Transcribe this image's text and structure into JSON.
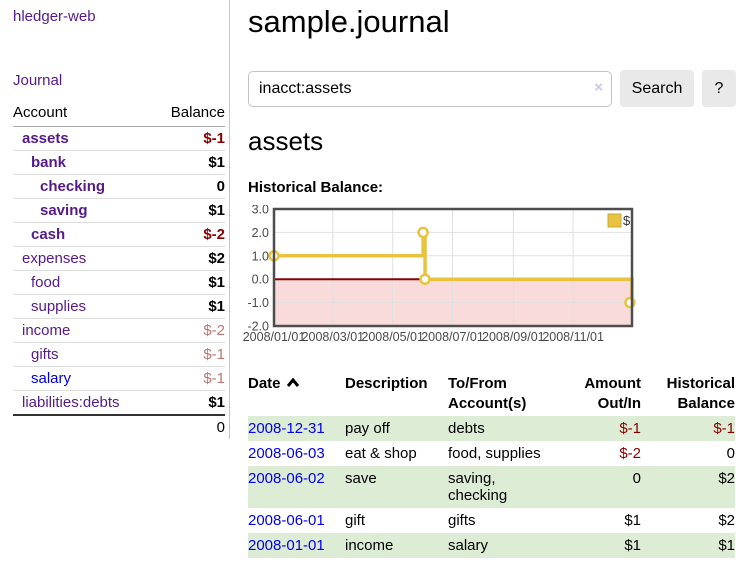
{
  "app": {
    "title": "hledger-web"
  },
  "sidebar": {
    "journal_label": "Journal",
    "accounts": {
      "header_account": "Account",
      "header_balance": "Balance",
      "rows": [
        {
          "name": "assets",
          "balance": "$-1",
          "depth": 1,
          "bold": true,
          "name_color": "purple",
          "balance_style": "bal-neg"
        },
        {
          "name": "bank",
          "balance": "$1",
          "depth": 2,
          "bold": true,
          "name_color": "purple",
          "balance_style": "bal-pos"
        },
        {
          "name": "checking",
          "balance": "0",
          "depth": 3,
          "bold": true,
          "name_color": "purple",
          "balance_style": "bal-pos"
        },
        {
          "name": "saving",
          "balance": "$1",
          "depth": 3,
          "bold": true,
          "name_color": "purple",
          "balance_style": "bal-pos"
        },
        {
          "name": "cash",
          "balance": "$-2",
          "depth": 2,
          "bold": true,
          "name_color": "purple",
          "balance_style": "bal-neg"
        },
        {
          "name": "expenses",
          "balance": "$2",
          "depth": 1,
          "bold": false,
          "name_color": "purple",
          "balance_style": "bal-pos"
        },
        {
          "name": "food",
          "balance": "$1",
          "depth": 2,
          "bold": false,
          "name_color": "purple",
          "balance_style": "bal-pos"
        },
        {
          "name": "supplies",
          "balance": "$1",
          "depth": 2,
          "bold": false,
          "name_color": "purple",
          "balance_style": "bal-pos"
        },
        {
          "name": "income",
          "balance": "$-2",
          "depth": 1,
          "bold": false,
          "name_color": "purple",
          "balance_style": "bal-muted"
        },
        {
          "name": "gifts",
          "balance": "$-1",
          "depth": 2,
          "bold": false,
          "name_color": "purple",
          "balance_style": "bal-muted"
        },
        {
          "name": "salary",
          "balance": "$-1",
          "depth": 2,
          "bold": false,
          "name_color": "blue",
          "balance_style": "bal-muted"
        },
        {
          "name": "liabilities:debts",
          "balance": "$1",
          "depth": 1,
          "bold": false,
          "name_color": "purple",
          "balance_style": "bal-pos"
        }
      ],
      "total": "0"
    }
  },
  "main": {
    "title": "sample.journal",
    "search": {
      "value": "inacct:assets",
      "clear_icon": "×",
      "button_label": "Search",
      "help_label": "?"
    },
    "account_heading": "assets",
    "chart_label": "Historical Balance:"
  },
  "register": {
    "columns": [
      {
        "label": "Date",
        "align": "left",
        "sort_icon": "chevron-up-icon"
      },
      {
        "label": "Description",
        "align": "left"
      },
      {
        "label": "To/From Account(s)",
        "align": "left"
      },
      {
        "label": "Amount Out/In",
        "align": "right"
      },
      {
        "label": "Historical Balance",
        "align": "right"
      }
    ],
    "rows": [
      {
        "date": "2008-12-31",
        "description": "pay off",
        "accounts": "debts",
        "amount": "$-1",
        "balance": "$-1"
      },
      {
        "date": "2008-06-03",
        "description": "eat & shop",
        "accounts": "food, supplies",
        "amount": "$-2",
        "balance": "0"
      },
      {
        "date": "2008-06-02",
        "description": "save",
        "accounts": "saving, checking",
        "amount": "0",
        "balance": "$2"
      },
      {
        "date": "2008-06-01",
        "description": "gift",
        "accounts": "gifts",
        "amount": "$1",
        "balance": "$2"
      },
      {
        "date": "2008-01-01",
        "description": "income",
        "accounts": "salary",
        "amount": "$1",
        "balance": "$1"
      }
    ]
  },
  "chart_data": {
    "type": "line",
    "step": true,
    "title": "Historical Balance",
    "series": [
      {
        "name": "$",
        "color": "#e9c33f",
        "points": [
          [
            "2008-01-01",
            1
          ],
          [
            "2008-06-01",
            2
          ],
          [
            "2008-06-03",
            0
          ],
          [
            "2008-12-31",
            -1
          ]
        ]
      }
    ],
    "xlim": [
      "2008-01-01",
      "2008-12-31"
    ],
    "ylim": [
      -2,
      3
    ],
    "yticks": [
      "3.0",
      "2.0",
      "1.0",
      "0.0",
      "-1.0",
      "-2.0"
    ],
    "xticks": [
      "2008/01/01",
      "2008/03/01",
      "2008/05/01",
      "2008/07/01",
      "2008/09/01",
      "2008/11/01"
    ],
    "legend_position": "top-right",
    "grid": true,
    "negative_region_fill": "#fadbdb",
    "zero_line_color": "#8b0000",
    "border_color": "#4d4d4d",
    "grid_color": "#e0e0e0"
  },
  "colors": {
    "link_purple": "#551a8b",
    "link_blue": "#0000ee",
    "negative_red": "#8b0000",
    "negative_muted": "#bf7474",
    "row_stripe_green": "#ddecd5",
    "chart_yellow": "#e9c33f",
    "chart_negative_region": "#fadbdb"
  }
}
